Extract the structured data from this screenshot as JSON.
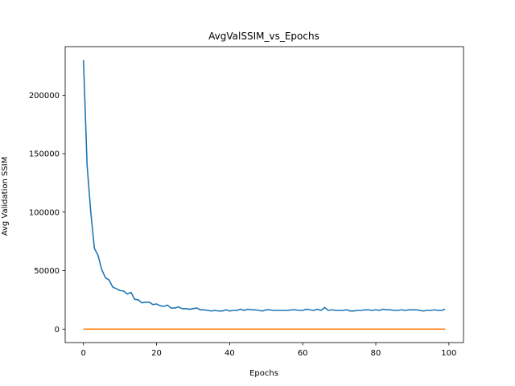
{
  "chart_data": {
    "type": "line",
    "title": "AvgValSSIM_vs_Epochs",
    "xlabel": "Epochs",
    "ylabel": "Avg Validation SSIM",
    "xlim": [
      -5,
      104
    ],
    "ylim": [
      -11500,
      241500
    ],
    "xticks": [
      0,
      20,
      40,
      60,
      80,
      100
    ],
    "yticks": [
      0,
      50000,
      100000,
      150000,
      200000
    ],
    "grid": false,
    "series": [
      {
        "color": "#1f77b4",
        "x": [
          0,
          1,
          2,
          3,
          4,
          5,
          6,
          7,
          8,
          9,
          10,
          11,
          12,
          13,
          14,
          15,
          16,
          17,
          18,
          19,
          20,
          21,
          22,
          23,
          24,
          25,
          26,
          27,
          28,
          29,
          30,
          31,
          32,
          33,
          34,
          35,
          36,
          37,
          38,
          39,
          40,
          41,
          42,
          43,
          44,
          45,
          46,
          47,
          48,
          49,
          50,
          51,
          52,
          53,
          54,
          55,
          56,
          57,
          58,
          59,
          60,
          61,
          62,
          63,
          64,
          65,
          66,
          67,
          68,
          69,
          70,
          71,
          72,
          73,
          74,
          75,
          76,
          77,
          78,
          79,
          80,
          81,
          82,
          83,
          84,
          85,
          86,
          87,
          88,
          89,
          90,
          91,
          92,
          93,
          94,
          95,
          96,
          97,
          98,
          99
        ],
        "values": [
          230000,
          140000,
          100000,
          69000,
          63000,
          51000,
          44000,
          42000,
          36000,
          34500,
          33000,
          32500,
          30000,
          31500,
          25500,
          25000,
          22500,
          23000,
          23000,
          21000,
          21500,
          20000,
          19500,
          20500,
          18000,
          18000,
          19000,
          17500,
          17500,
          17000,
          17500,
          18000,
          16500,
          16500,
          16000,
          15500,
          16000,
          15500,
          15500,
          16500,
          15500,
          16000,
          16000,
          17000,
          16000,
          17000,
          16500,
          16500,
          16000,
          15500,
          16500,
          16500,
          16000,
          16000,
          16000,
          16000,
          16000,
          16500,
          16500,
          16000,
          16000,
          17000,
          16500,
          16000,
          17000,
          16000,
          18500,
          16000,
          16500,
          16000,
          16000,
          16000,
          16500,
          15500,
          15500,
          16000,
          16000,
          16500,
          16500,
          16000,
          16500,
          16000,
          17000,
          16500,
          16500,
          16000,
          16000,
          16500,
          16000,
          16500,
          16500,
          16500,
          16000,
          15500,
          16000,
          16000,
          16500,
          16000,
          16000,
          17000
        ]
      },
      {
        "color": "#ff7f0e",
        "x": [
          0,
          99
        ],
        "values": [
          0.3,
          0.9
        ]
      }
    ]
  }
}
